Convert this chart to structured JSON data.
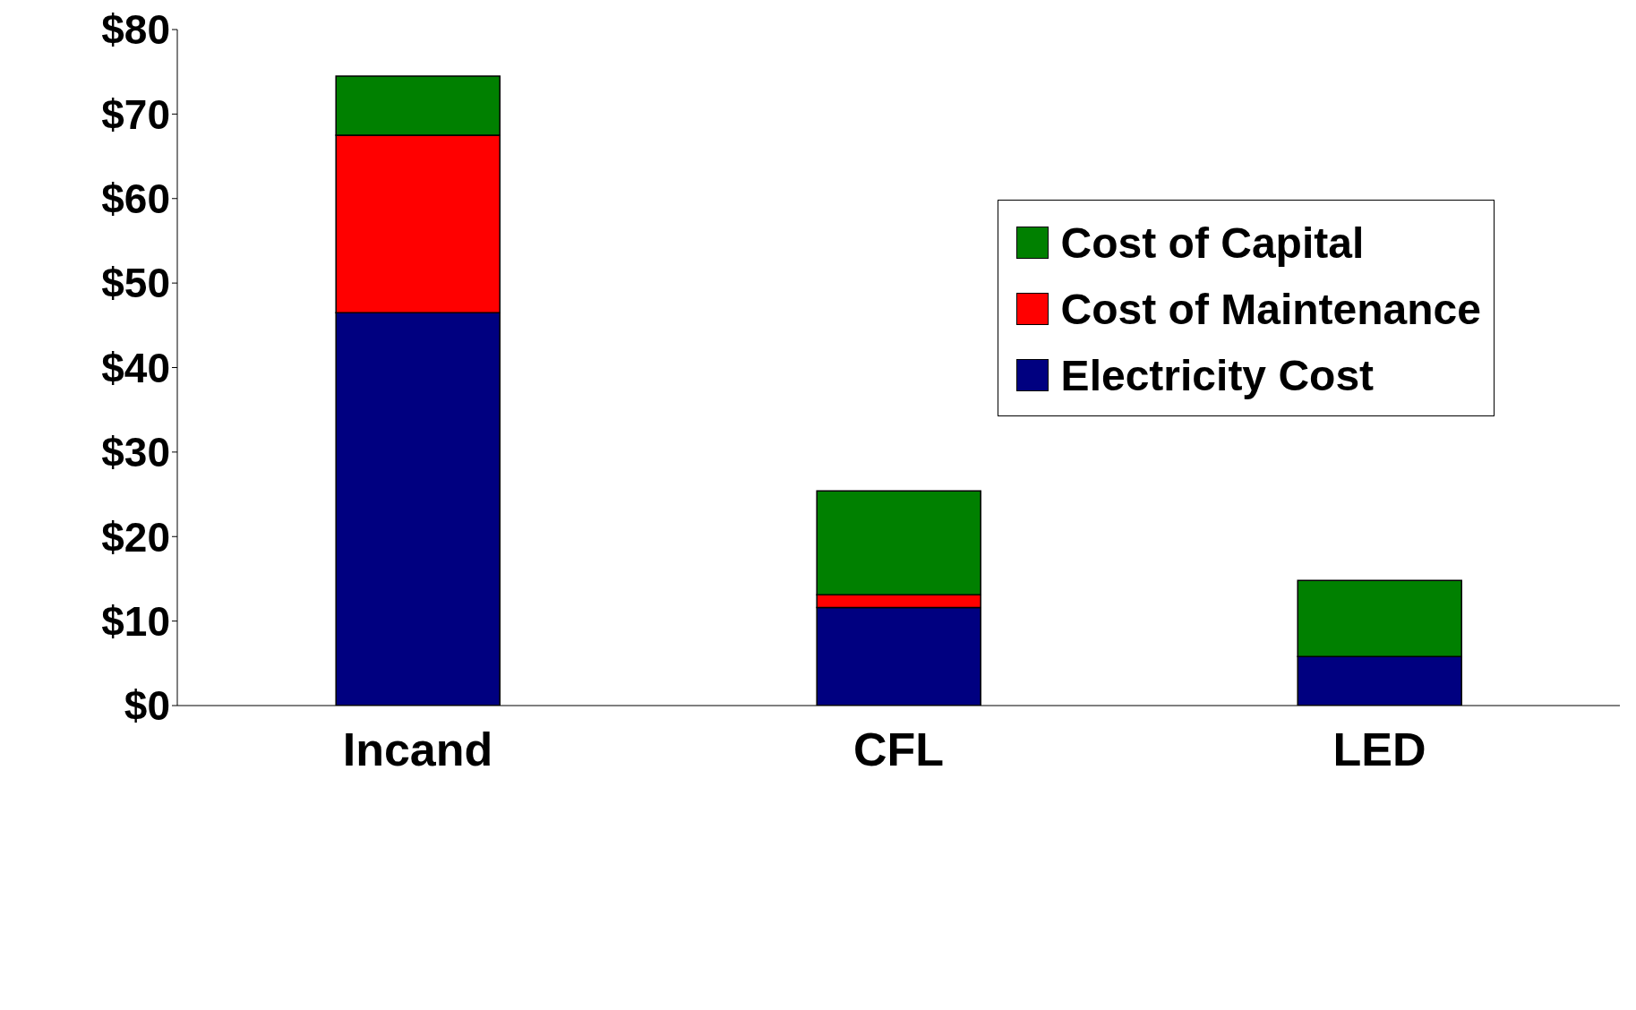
{
  "chart_data": {
    "type": "bar",
    "stacked": true,
    "categories": [
      "Incand",
      "CFL",
      "LED"
    ],
    "series": [
      {
        "name": "Electricity Cost",
        "color": "#000080",
        "values": [
          46.5,
          11.6,
          5.8
        ]
      },
      {
        "name": "Cost of Maintenance",
        "color": "#ff0000",
        "values": [
          21,
          1.5,
          0
        ]
      },
      {
        "name": "Cost of Capital",
        "color": "#008000",
        "values": [
          7,
          12.3,
          9
        ]
      }
    ],
    "ylim": [
      0,
      80
    ],
    "yticks": [
      {
        "value": 0,
        "label": "$0"
      },
      {
        "value": 10,
        "label": "$10"
      },
      {
        "value": 20,
        "label": "$20"
      },
      {
        "value": 30,
        "label": "$30"
      },
      {
        "value": 40,
        "label": "$40"
      },
      {
        "value": 50,
        "label": "$50"
      },
      {
        "value": 60,
        "label": "$60"
      },
      {
        "value": 70,
        "label": "$70"
      },
      {
        "value": 80,
        "label": "$80"
      }
    ],
    "legend": "top right",
    "grid": false
  }
}
